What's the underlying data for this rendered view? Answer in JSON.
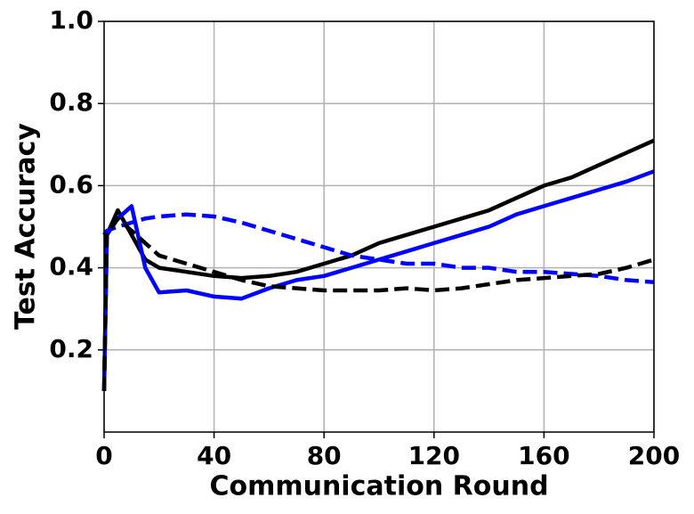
{
  "chart_data": {
    "type": "line",
    "xlabel": "Communication Round",
    "ylabel": "Test Accuracy",
    "x": [
      0,
      1,
      5,
      10,
      15,
      20,
      30,
      40,
      50,
      60,
      70,
      80,
      90,
      100,
      110,
      120,
      130,
      140,
      150,
      160,
      170,
      180,
      190,
      200
    ],
    "series": [
      {
        "color": "#000000",
        "dashed": false,
        "values": [
          0.1,
          0.48,
          0.54,
          0.48,
          0.42,
          0.4,
          0.39,
          0.38,
          0.375,
          0.38,
          0.39,
          0.41,
          0.43,
          0.46,
          0.48,
          0.5,
          0.52,
          0.54,
          0.57,
          0.6,
          0.62,
          0.65,
          0.68,
          0.71
        ]
      },
      {
        "color": "#0000ff",
        "dashed": false,
        "values": [
          0.1,
          0.48,
          0.52,
          0.55,
          0.4,
          0.34,
          0.345,
          0.33,
          0.325,
          0.35,
          0.37,
          0.38,
          0.4,
          0.42,
          0.44,
          0.46,
          0.48,
          0.5,
          0.53,
          0.55,
          0.57,
          0.59,
          0.61,
          0.635
        ]
      },
      {
        "color": "#0000ff",
        "dashed": true,
        "values": [
          0.48,
          0.49,
          0.5,
          0.51,
          0.52,
          0.525,
          0.53,
          0.525,
          0.51,
          0.49,
          0.47,
          0.45,
          0.43,
          0.42,
          0.41,
          0.41,
          0.4,
          0.4,
          0.39,
          0.39,
          0.385,
          0.38,
          0.37,
          0.365
        ]
      },
      {
        "color": "#000000",
        "dashed": true,
        "values": [
          0.1,
          0.48,
          0.52,
          0.49,
          0.46,
          0.43,
          0.41,
          0.39,
          0.37,
          0.355,
          0.35,
          0.345,
          0.345,
          0.345,
          0.35,
          0.345,
          0.35,
          0.36,
          0.37,
          0.375,
          0.38,
          0.385,
          0.4,
          0.42
        ]
      }
    ],
    "xlim": [
      0,
      200
    ],
    "xticks": [
      0,
      40,
      80,
      120,
      160,
      200
    ],
    "ylim": [
      0,
      1
    ],
    "yticks": [
      0.2,
      0.4,
      0.6,
      0.8,
      {
        "value": 1,
        "label": "1.0"
      }
    ],
    "grid": true
  }
}
